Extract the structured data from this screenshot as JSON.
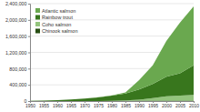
{
  "chart_data": {
    "type": "area",
    "stacked": true,
    "grid": true,
    "legend": "upper-left",
    "x": [
      1950,
      1955,
      1960,
      1965,
      1970,
      1975,
      1980,
      1985,
      1990,
      1995,
      2000,
      2005,
      2010
    ],
    "xlim": [
      1950,
      2010
    ],
    "xticks": [
      1950,
      1955,
      1960,
      1965,
      1970,
      1975,
      1980,
      1985,
      1990,
      1995,
      2000,
      2005,
      2010
    ],
    "ylim": [
      0,
      2400000
    ],
    "yticks": [
      0,
      {
        "value": 400000,
        "label": "400,000"
      },
      {
        "value": 800000,
        "label": "800,000"
      },
      {
        "value": 1200000,
        "label": "1,200,000"
      },
      {
        "value": 1600000,
        "label": "1,600,000"
      },
      {
        "value": 2000000,
        "label": "2,000,000"
      },
      {
        "value": 2400000,
        "label": "2,400,000"
      }
    ],
    "series": [
      {
        "name": "Atlantic salmon",
        "color": "#6aa84f",
        "values": [
          0,
          0,
          0,
          0,
          0,
          500,
          5000,
          30000,
          230000,
          460000,
          880000,
          1250000,
          1450000
        ]
      },
      {
        "name": "Rainbow trout",
        "color": "#38761d",
        "values": [
          5000,
          10000,
          25000,
          40000,
          60000,
          90000,
          130000,
          170000,
          250000,
          350000,
          480000,
          550000,
          730000
        ]
      },
      {
        "name": "Coho salmon",
        "color": "#93c47d",
        "values": [
          0,
          0,
          0,
          0,
          0,
          2000,
          3000,
          10000,
          25000,
          60000,
          110000,
          120000,
          140000
        ]
      },
      {
        "name": "Chinook salmon",
        "color": "#274e13",
        "values": [
          0,
          0,
          0,
          0,
          0,
          500,
          1000,
          5000,
          10000,
          12000,
          10000,
          12000,
          12000
        ]
      }
    ]
  }
}
